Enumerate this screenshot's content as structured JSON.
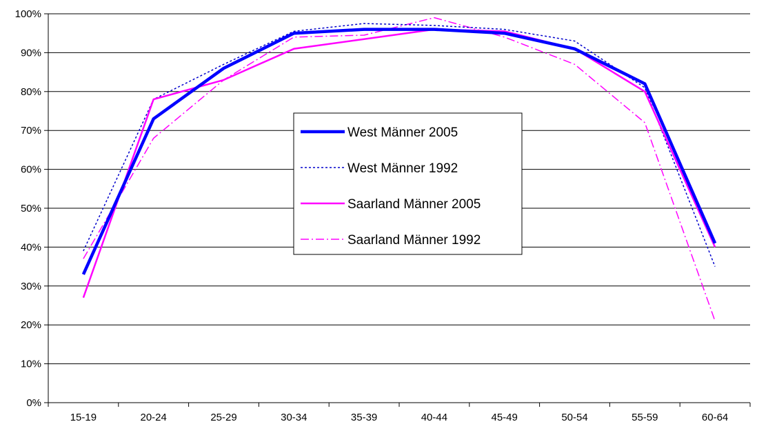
{
  "chart_data": {
    "type": "line",
    "title": "",
    "xlabel": "",
    "ylabel": "",
    "categories": [
      "15-19",
      "20-24",
      "25-29",
      "30-34",
      "35-39",
      "40-44",
      "45-49",
      "50-54",
      "55-59",
      "60-64"
    ],
    "ylim": [
      0,
      100
    ],
    "y_ticks": [
      0,
      10,
      20,
      30,
      40,
      50,
      60,
      70,
      80,
      90,
      100
    ],
    "y_tick_labels": [
      "0%",
      "10%",
      "20%",
      "30%",
      "40%",
      "50%",
      "60%",
      "70%",
      "80%",
      "90%",
      "100%"
    ],
    "grid": "horizontal",
    "legend_position": "center",
    "series": [
      {
        "name": "West Männer 2005",
        "color": "#0000FF",
        "style": "solid-thick",
        "values": [
          33,
          73,
          86,
          95,
          96,
          96,
          95,
          91,
          82,
          41
        ]
      },
      {
        "name": "West Männer 1992",
        "color": "#0000CC",
        "style": "dotted",
        "values": [
          39,
          78,
          87,
          95.5,
          97.5,
          97,
          96,
          93,
          81,
          35
        ]
      },
      {
        "name": "Saarland Männer 2005",
        "color": "#FF00FF",
        "style": "solid",
        "values": [
          27,
          78,
          83,
          91,
          93.5,
          96,
          95.5,
          91,
          80,
          40
        ]
      },
      {
        "name": "Saarland Männer 1992",
        "color": "#FF00FF",
        "style": "dash-dot",
        "values": [
          37,
          68,
          83,
          94,
          94.5,
          99,
          94,
          87,
          72,
          21
        ]
      }
    ]
  }
}
